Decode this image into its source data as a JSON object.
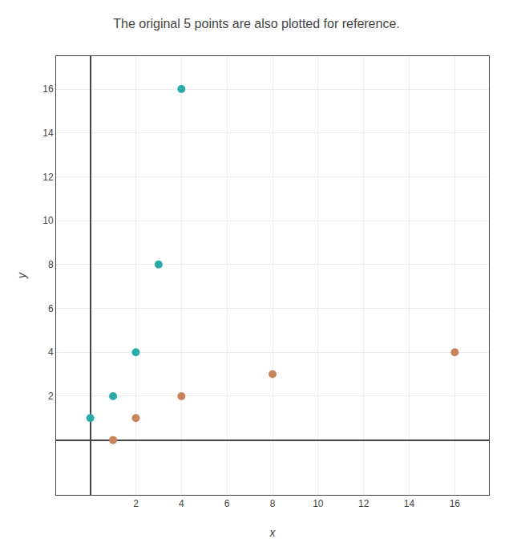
{
  "chart_data": {
    "type": "scatter",
    "title": "The original 5 points are also plotted for reference.",
    "xlabel": "x",
    "ylabel": "y",
    "series": [
      {
        "color": "#2aabab",
        "x": [
          0,
          1,
          2,
          3,
          4
        ],
        "values": [
          1,
          2,
          4,
          8,
          16
        ]
      },
      {
        "color": "#c8855a",
        "x": [
          1,
          2,
          4,
          8,
          16
        ],
        "values": [
          0,
          1,
          2,
          3,
          4
        ]
      }
    ],
    "xlim": [
      -1.5,
      17.5
    ],
    "ylim": [
      -2.5,
      17.5
    ],
    "xticks": [
      2,
      4,
      6,
      8,
      10,
      12,
      14,
      16
    ],
    "yticks": [
      2,
      4,
      6,
      8,
      10,
      12,
      14,
      16
    ],
    "grid": true
  }
}
